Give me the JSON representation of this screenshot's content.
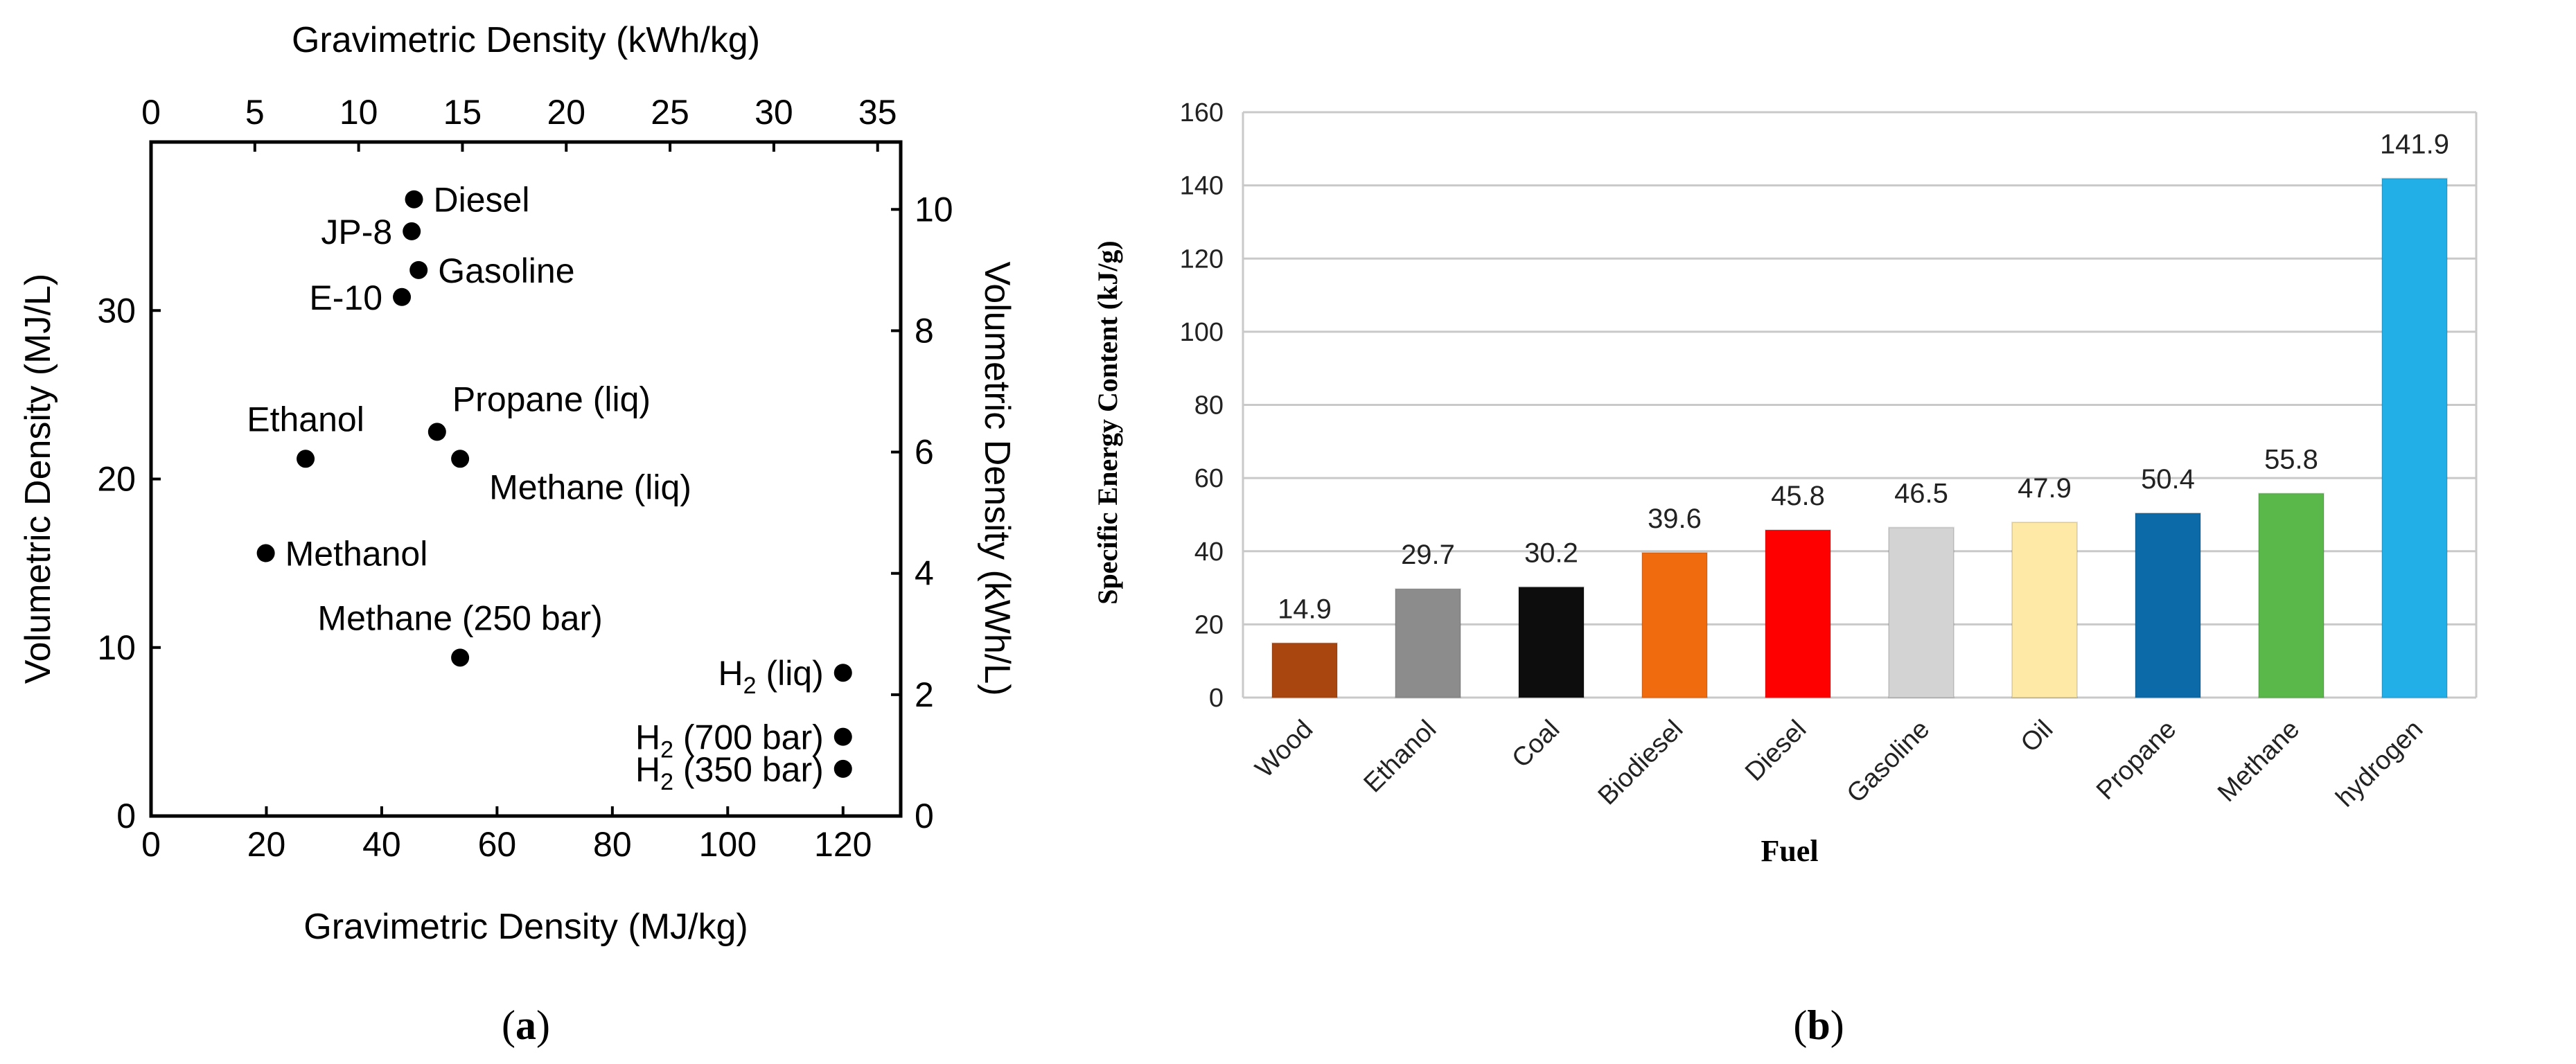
{
  "chart_data": [
    {
      "panel": "a",
      "type": "scatter",
      "xlabel_bottom": "Gravimetric Density (MJ/kg)",
      "xlabel_top": "Gravimetric Density (kWh/kg)",
      "ylabel_left": "Volumetric Density (MJ/L)",
      "ylabel_right": "Volumetric Density (kWh/L)",
      "xlim": [
        0,
        130
      ],
      "ylim": [
        0,
        40
      ],
      "x_ticks_bottom": [
        0,
        20,
        40,
        60,
        80,
        100,
        120
      ],
      "y_ticks_left": [
        0,
        10,
        20,
        30
      ],
      "x_ticks_top": [
        0,
        5,
        10,
        15,
        20,
        25,
        30,
        35
      ],
      "y_ticks_right": [
        0,
        2,
        4,
        6,
        8,
        10
      ],
      "points": [
        {
          "label": "Diesel",
          "x": 45.6,
          "y": 36.6,
          "side": "right"
        },
        {
          "label": "JP-8",
          "x": 45.2,
          "y": 34.7,
          "side": "left"
        },
        {
          "label": "Gasoline",
          "x": 46.4,
          "y": 32.4,
          "side": "right"
        },
        {
          "label": "E-10",
          "x": 43.5,
          "y": 30.8,
          "side": "left"
        },
        {
          "label": "Propane (liq)",
          "x": 49.6,
          "y": 22.8,
          "side": "above-right"
        },
        {
          "label": "Methane (liq)",
          "x": 53.6,
          "y": 21.2,
          "side": "below-right"
        },
        {
          "label": "Ethanol",
          "x": 26.8,
          "y": 21.2,
          "side": "above"
        },
        {
          "label": "Methanol",
          "x": 19.9,
          "y": 15.6,
          "side": "right"
        },
        {
          "label": "Methane (250 bar)",
          "x": 53.6,
          "y": 9.4,
          "side": "above"
        },
        {
          "label": "H",
          "sub": "2",
          "rest": " (liq)",
          "x": 120,
          "y": 8.5,
          "side": "left"
        },
        {
          "label": "H",
          "sub": "2",
          "rest": " (700 bar)",
          "x": 120,
          "y": 4.7,
          "side": "left"
        },
        {
          "label": "H",
          "sub": "2",
          "rest": " (350 bar)",
          "x": 120,
          "y": 2.8,
          "side": "left"
        }
      ],
      "caption": "(a)"
    },
    {
      "panel": "b",
      "type": "bar",
      "xlabel": "Fuel",
      "ylabel": "Specific Energy Content (kJ/g)",
      "ylim": [
        0,
        160
      ],
      "y_ticks": [
        0,
        20,
        40,
        60,
        80,
        100,
        120,
        140,
        160
      ],
      "categories": [
        "Wood",
        "Ethanol",
        "Coal",
        "Biodiesel",
        "Diesel",
        "Gasoline",
        "Oil",
        "Propane",
        "Methane",
        "hydrogen"
      ],
      "values": [
        14.9,
        29.7,
        30.2,
        39.6,
        45.8,
        46.5,
        47.9,
        50.4,
        55.8,
        141.9
      ],
      "value_labels": [
        "14.9",
        "29.7",
        "30.2",
        "39.6",
        "45.8",
        "46.5",
        "47.9",
        "50.4",
        "55.8",
        "141.9"
      ],
      "colors": [
        "#a9460f",
        "#8c8c8c",
        "#0d0d0d",
        "#f06a0e",
        "#ff0000",
        "#d3d3d3",
        "#fee9a6",
        "#0c6aa8",
        "#5ab84b",
        "#22aee6"
      ],
      "grid": true,
      "caption": "(b)"
    }
  ]
}
